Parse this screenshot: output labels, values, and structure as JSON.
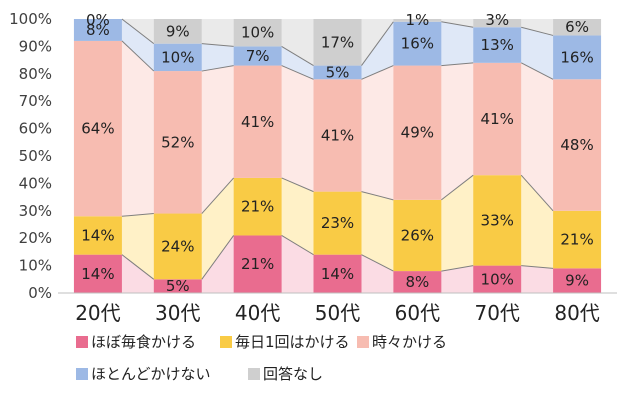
{
  "chart_data": {
    "type": "bar",
    "stacked": true,
    "categories": [
      "20代",
      "30代",
      "40代",
      "50代",
      "60代",
      "70代",
      "80代"
    ],
    "series": [
      {
        "name": "ほぼ毎食かける",
        "values": [
          14,
          5,
          21,
          14,
          8,
          10,
          9
        ],
        "labels": [
          "14%",
          "5%",
          "21%",
          "14%",
          "8%",
          "10%",
          "9%"
        ],
        "color": "#e96c8f",
        "band_color": "#fbdce4"
      },
      {
        "name": "毎日1回はかける",
        "values": [
          14,
          24,
          21,
          23,
          26,
          33,
          21
        ],
        "labels": [
          "14%",
          "24%",
          "21%",
          "23%",
          "26%",
          "33%",
          "21%"
        ],
        "color": "#f9cb45",
        "band_color": "#fff1c7"
      },
      {
        "name": "時々かける",
        "values": [
          64,
          52,
          41,
          41,
          49,
          41,
          48
        ],
        "labels": [
          "64%",
          "52%",
          "41%",
          "41%",
          "49%",
          "41%",
          "48%"
        ],
        "color": "#f7bcb1",
        "band_color": "#fde9e6"
      },
      {
        "name": "ほとんどかけない",
        "values": [
          8,
          10,
          7,
          5,
          16,
          13,
          16
        ],
        "labels": [
          "8%",
          "10%",
          "7%",
          "5%",
          "16%",
          "13%",
          "16%"
        ],
        "color": "#9db9e5",
        "band_color": "#dfe8f7"
      },
      {
        "name": "回答なし",
        "values": [
          0,
          9,
          10,
          17,
          1,
          3,
          6
        ],
        "labels": [
          "0%",
          "9%",
          "10%",
          "17%",
          "1%",
          "3%",
          "6%"
        ],
        "color": "#cfcfcf",
        "band_color": "#eaeaea"
      }
    ],
    "yticks": [
      "0%",
      "10%",
      "20%",
      "30%",
      "40%",
      "50%",
      "60%",
      "70%",
      "80%",
      "90%",
      "100%"
    ],
    "ylim": [
      0,
      100
    ],
    "grid": false,
    "legend_position": "bottom",
    "series_lines": true
  }
}
